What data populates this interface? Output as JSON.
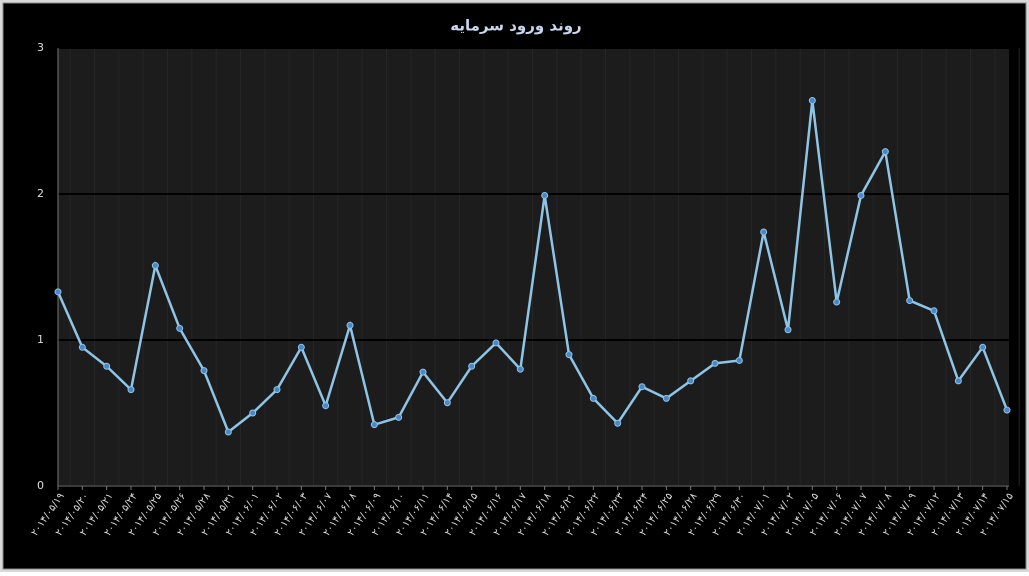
{
  "chart_data": {
    "type": "line",
    "title": "روند ورود سرمایه",
    "categories": [
      "۲۰۱۴/۰۵/۱۹",
      "۲۰۱۴/۰۵/۲۰",
      "۲۰۱۴/۰۵/۲۱",
      "۲۰۱۴/۰۵/۲۴",
      "۲۰۱۴/۰۵/۲۵",
      "۲۰۱۴/۰۵/۲۶",
      "۲۰۱۴/۰۵/۲۸",
      "۲۰۱۴/۰۵/۳۱",
      "۲۰۱۴/۰۶/۰۱",
      "۲۰۱۴/۰۶/۰۲",
      "۲۰۱۴/۰۶/۰۳",
      "۲۰۱۴/۰۶/۰۷",
      "۲۰۱۴/۰۶/۰۸",
      "۲۰۱۴/۰۶/۰۹",
      "۲۰۱۴/۰۶/۱۰",
      "۲۰۱۴/۰۶/۱۱",
      "۲۰۱۴/۰۶/۱۴",
      "۲۰۱۴/۰۶/۱۵",
      "۲۰۱۴/۰۶/۱۶",
      "۲۰۱۴/۰۶/۱۷",
      "۲۰۱۴/۰۶/۱۸",
      "۲۰۱۴/۰۶/۲۱",
      "۲۰۱۴/۰۶/۲۲",
      "۲۰۱۴/۰۶/۲۳",
      "۲۰۱۴/۰۶/۲۴",
      "۲۰۱۴/۰۶/۲۵",
      "۲۰۱۴/۰۶/۲۸",
      "۲۰۱۴/۰۶/۲۹",
      "۲۰۱۴/۰۶/۳۰",
      "۲۰۱۴/۰۷/۰۱",
      "۲۰۱۴/۰۷/۰۲",
      "۲۰۱۴/۰۷/۰۵",
      "۲۰۱۴/۰۷/۰۶",
      "۲۰۱۴/۰۷/۰۷",
      "۲۰۱۴/۰۷/۰۸",
      "۲۰۱۴/۰۷/۰۹",
      "۲۰۱۴/۰۷/۱۲",
      "۲۰۱۴/۰۷/۱۳",
      "۲۰۱۴/۰۷/۱۴",
      "۲۰۱۴/۰۷/۱۵"
    ],
    "values": [
      1.33,
      0.95,
      0.82,
      0.66,
      1.51,
      1.08,
      0.79,
      0.37,
      0.5,
      0.66,
      0.95,
      0.55,
      1.1,
      0.42,
      0.47,
      0.78,
      0.57,
      0.82,
      0.98,
      0.8,
      1.99,
      0.9,
      0.6,
      0.43,
      0.68,
      0.6,
      0.72,
      0.84,
      0.86,
      1.74,
      1.07,
      2.64,
      1.26,
      1.99,
      2.29,
      1.27,
      1.2,
      0.72,
      0.95,
      0.52
    ],
    "color": "#8ec5e6",
    "marker_color": "#4a86c8",
    "ylim": [
      0,
      3
    ],
    "yticks": [
      0,
      1,
      2,
      3
    ],
    "grid": true
  }
}
